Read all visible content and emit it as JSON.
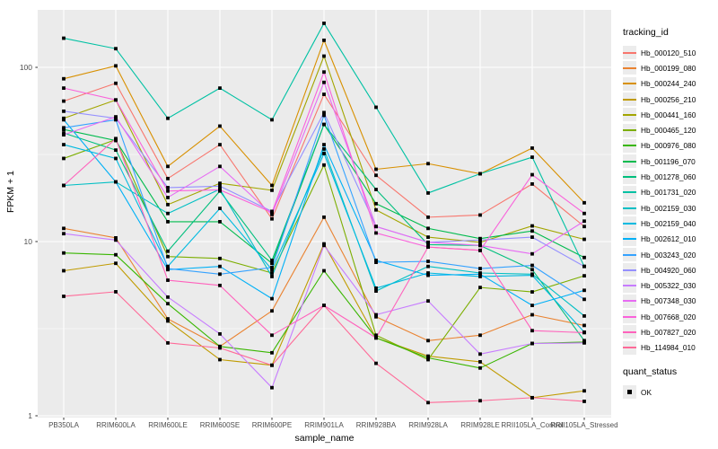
{
  "chart_data": {
    "type": "line",
    "title": "",
    "xlabel": "sample_name",
    "ylabel": "FPKM + 1",
    "y_scale": "log10",
    "y_ticks": [
      1,
      10,
      100
    ],
    "y_minor_ticks": [
      3.162,
      31.62
    ],
    "ylim": [
      0.97,
      215
    ],
    "grid": "on",
    "legend_position": "right",
    "panel_bg": "#ebebeb",
    "grid_major_color": "#ffffff",
    "grid_minor_color": "#ffffff",
    "tick_label_color": "#4d4d4d",
    "marker": "black-square",
    "categories": [
      "PB350LA",
      "RRIM600LA",
      "RRIM600LE",
      "RRIM600SE",
      "RRIM600PE",
      "RRIM901LA",
      "RRIM928BA",
      "RRIM928LA",
      "RRIM928LE",
      "RRII105LA_Control",
      "RRII105LA_Stressed"
    ],
    "series": [
      {
        "name": "Hb_000120_510",
        "color": "#F8766D",
        "values": [
          64,
          81,
          23,
          36,
          13.5,
          70,
          24,
          13.8,
          14.2,
          21.4,
          12.2
        ]
      },
      {
        "name": "Hb_000199_080",
        "color": "#EA8331",
        "values": [
          11.9,
          10.5,
          3.6,
          2.5,
          4.0,
          13.8,
          3.7,
          2.7,
          2.9,
          3.8,
          3.3
        ]
      },
      {
        "name": "Hb_000244_240",
        "color": "#D89000",
        "values": [
          86,
          102,
          27,
          46,
          21,
          143,
          26,
          28,
          24.5,
          34.4,
          16.7
        ]
      },
      {
        "name": "Hb_000256_210",
        "color": "#C09B00",
        "values": [
          6.8,
          7.5,
          3.5,
          2.1,
          1.95,
          9.7,
          2.8,
          2.2,
          2.04,
          1.27,
          1.39
        ]
      },
      {
        "name": "Hb_000441_160",
        "color": "#A3A500",
        "values": [
          51,
          65,
          16.3,
          21.6,
          19.7,
          116,
          15.2,
          10.6,
          9.9,
          12.3,
          10.3
        ]
      },
      {
        "name": "Hb_000465_120",
        "color": "#7CAE00",
        "values": [
          30,
          38.5,
          8.2,
          8.0,
          6.6,
          27.5,
          2.9,
          2.1,
          5.45,
          5.14,
          6.36
        ]
      },
      {
        "name": "Hb_000976_080",
        "color": "#39B600",
        "values": [
          8.6,
          8.4,
          4.4,
          2.5,
          2.3,
          6.8,
          2.8,
          2.15,
          1.88,
          2.6,
          2.65
        ]
      },
      {
        "name": "Hb_001196_070",
        "color": "#00BB4E",
        "values": [
          44,
          38,
          13,
          13,
          7.5,
          47,
          16.5,
          11.9,
          10.4,
          11.5,
          8.1
        ]
      },
      {
        "name": "Hb_001278_060",
        "color": "#00BF7D",
        "values": [
          42,
          33.5,
          8.8,
          19.5,
          7.8,
          47,
          19.9,
          9.6,
          9.5,
          6.9,
          2.7
        ]
      },
      {
        "name": "Hb_001731_020",
        "color": "#00C1A3",
        "values": [
          147,
          128,
          51,
          76,
          50,
          179,
          59,
          19,
          24.5,
          30.5,
          7.2
        ]
      },
      {
        "name": "Hb_002159_030",
        "color": "#00BFC4",
        "values": [
          21,
          22,
          14.5,
          20,
          6.3,
          34,
          5.2,
          7.2,
          6.6,
          6.5,
          3.74
        ]
      },
      {
        "name": "Hb_002159_040",
        "color": "#00BAE0",
        "values": [
          36,
          30,
          7.2,
          15.5,
          6.9,
          32,
          5.4,
          6.6,
          6.3,
          6.4,
          3.02
        ]
      },
      {
        "name": "Hb_002612_010",
        "color": "#00B0F6",
        "values": [
          50,
          22,
          6.9,
          7.2,
          4.7,
          36,
          7.8,
          6.4,
          6.5,
          4.3,
          5.25
        ]
      },
      {
        "name": "Hb_003243_020",
        "color": "#35A2FF",
        "values": [
          45,
          50,
          7.0,
          6.5,
          7.1,
          53,
          7.6,
          7.7,
          7.0,
          7.3,
          4.66
        ]
      },
      {
        "name": "Hb_004920_060",
        "color": "#9590FF",
        "values": [
          56,
          51,
          20.4,
          20.8,
          14.9,
          55,
          12.2,
          9.9,
          10.2,
          10.6,
          7.2
        ]
      },
      {
        "name": "Hb_005322_030",
        "color": "#C77CFF",
        "values": [
          11.1,
          10.2,
          4.8,
          2.95,
          1.45,
          9.5,
          3.8,
          4.56,
          2.26,
          2.6,
          2.62
        ]
      },
      {
        "name": "Hb_007348_030",
        "color": "#E76BF3",
        "values": [
          41,
          52,
          17.9,
          27,
          14.3,
          82,
          12.2,
          9.9,
          9.5,
          8.5,
          13.1
        ]
      },
      {
        "name": "Hb_007668_020",
        "color": "#FA62DB",
        "values": [
          76,
          65,
          19.5,
          19.8,
          14.7,
          94,
          11.2,
          9.3,
          8.9,
          24.2,
          14.5
        ]
      },
      {
        "name": "Hb_007827_020",
        "color": "#FF62BC",
        "values": [
          21,
          39,
          6.0,
          5.6,
          2.9,
          4.3,
          2.8,
          9.3,
          8.9,
          3.08,
          3.0
        ]
      },
      {
        "name": "Hb_114984_010",
        "color": "#FF6A98",
        "values": [
          4.85,
          5.15,
          2.62,
          2.45,
          1.95,
          4.3,
          2.0,
          1.19,
          1.22,
          1.27,
          1.21
        ]
      }
    ]
  },
  "axes": {
    "x_title": "sample_name",
    "y_title": "FPKM + 1",
    "y_tick_labels": [
      "1",
      "10",
      "100"
    ]
  },
  "legend": {
    "tracking_title": "tracking_id",
    "quant_title": "quant_status",
    "quant_value": "OK"
  }
}
